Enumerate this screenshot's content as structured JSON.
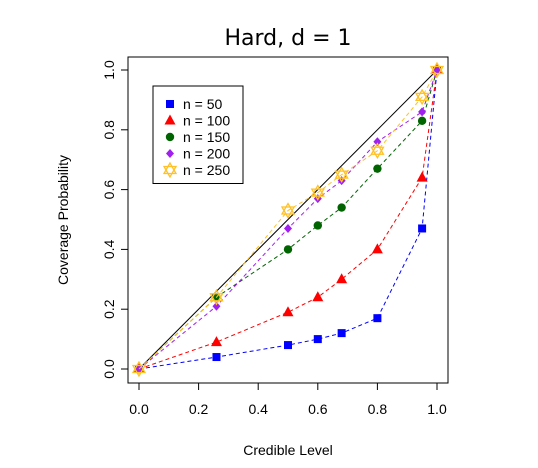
{
  "chart_data": {
    "type": "line",
    "title": "Hard, d = 1",
    "xlabel": "Credible Level",
    "ylabel": "Coverage Probability",
    "xlim": [
      0,
      1
    ],
    "ylim": [
      0,
      1
    ],
    "x_ticks": [
      "0.0",
      "0.2",
      "0.4",
      "0.6",
      "0.8",
      "1.0"
    ],
    "y_ticks": [
      "0.0",
      "0.2",
      "0.4",
      "0.6",
      "0.8",
      "1.0"
    ],
    "legend_position": "top-left",
    "reference_line": {
      "x": [
        0,
        1
      ],
      "y": [
        0,
        1
      ],
      "color": "#000000"
    },
    "x": [
      0,
      0.26,
      0.5,
      0.6,
      0.68,
      0.8,
      0.95,
      1.0
    ],
    "series": [
      {
        "name": "n = 50",
        "color": "#0000ff",
        "marker": "square",
        "values": [
          0,
          0.04,
          0.08,
          0.1,
          0.12,
          0.17,
          0.47,
          1.0
        ]
      },
      {
        "name": "n = 100",
        "color": "#ff0000",
        "marker": "triangle",
        "values": [
          0,
          0.09,
          0.19,
          0.24,
          0.3,
          0.4,
          0.64,
          1.0
        ]
      },
      {
        "name": "n = 150",
        "color": "#006400",
        "marker": "circle",
        "values": [
          0,
          0.24,
          0.4,
          0.48,
          0.54,
          0.67,
          0.83,
          1.0
        ]
      },
      {
        "name": "n = 200",
        "color": "#a020f0",
        "marker": "diamond",
        "values": [
          0,
          0.21,
          0.47,
          0.57,
          0.63,
          0.76,
          0.86,
          1.0
        ]
      },
      {
        "name": "n = 250",
        "color": "#ffc125",
        "marker": "star",
        "values": [
          0,
          0.24,
          0.53,
          0.59,
          0.65,
          0.73,
          0.91,
          1.0
        ]
      }
    ]
  }
}
